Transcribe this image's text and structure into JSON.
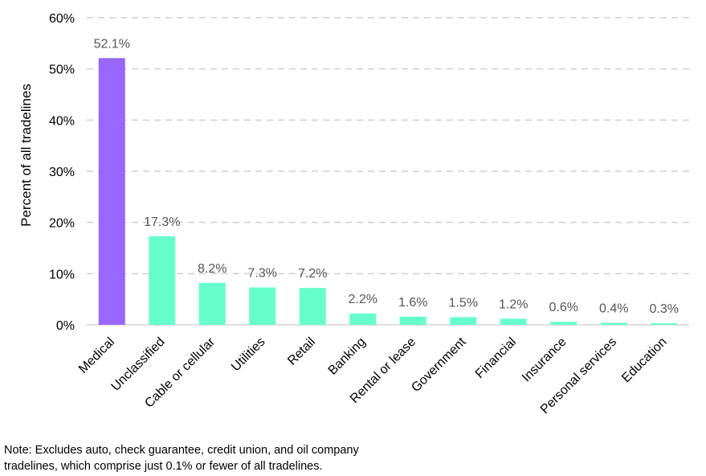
{
  "chart_data": {
    "type": "bar",
    "title": "",
    "xlabel": "",
    "ylabel": "Percent of all tradelines",
    "ylim": [
      0,
      60
    ],
    "yticks": [
      0,
      10,
      20,
      30,
      40,
      50,
      60
    ],
    "ytick_labels": [
      "0%",
      "10%",
      "20%",
      "30%",
      "40%",
      "50%",
      "60%"
    ],
    "grid": "horizontal dashed",
    "categories": [
      "Medical",
      "Unclassified",
      "Cable or cellular",
      "Utilities",
      "Retail",
      "Banking",
      "Rental or lease",
      "Government",
      "Financial",
      "Insurance",
      "Personal services",
      "Education"
    ],
    "values": [
      52.1,
      17.3,
      8.2,
      7.3,
      7.2,
      2.2,
      1.6,
      1.5,
      1.2,
      0.6,
      0.4,
      0.3
    ],
    "value_labels": [
      "52.1%",
      "17.3%",
      "8.2%",
      "7.3%",
      "7.2%",
      "2.2%",
      "1.6%",
      "1.5%",
      "1.2%",
      "0.6%",
      "0.4%",
      "0.3%"
    ],
    "colors": {
      "highlight": "#9966ff",
      "default": "#66ffcc",
      "grid": "#d0d0d0",
      "axis": "#bfbfbf"
    },
    "highlight_index": 0
  },
  "note": {
    "line1": "Note: Excludes auto, check guarantee, credit union, and oil company",
    "line2": "tradelines, which comprise just 0.1% or fewer of all tradelines."
  }
}
